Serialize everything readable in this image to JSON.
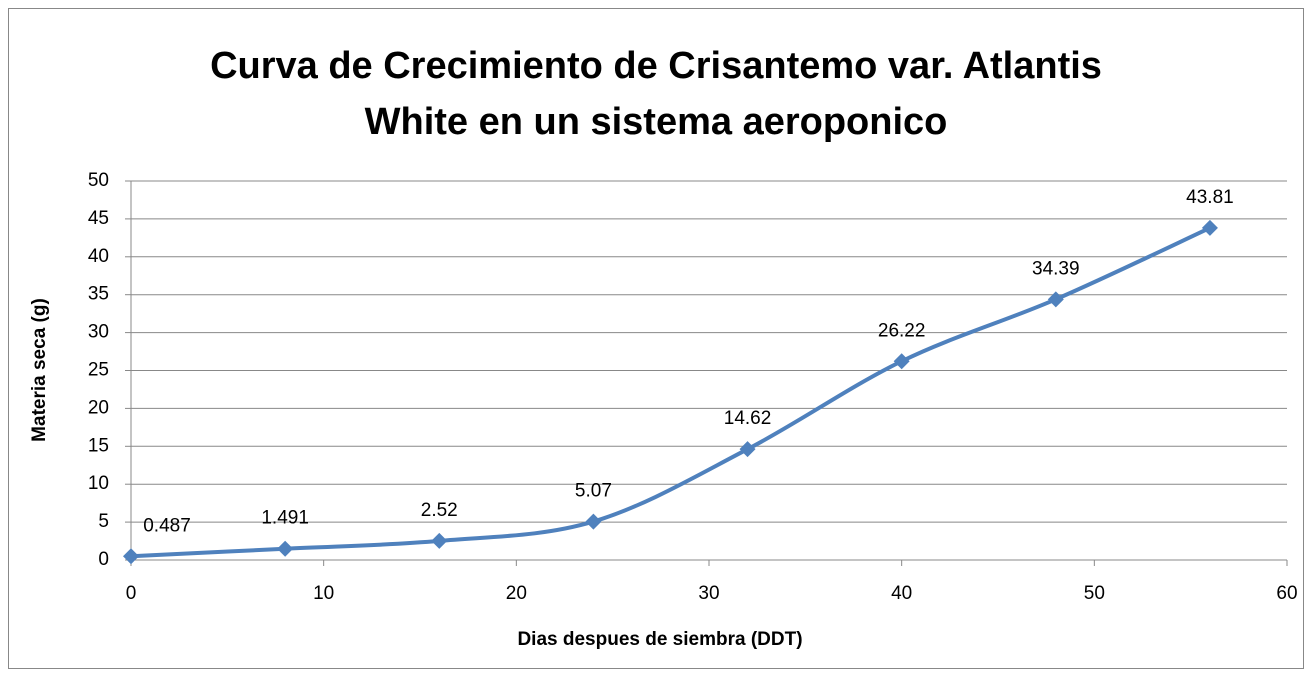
{
  "chart_data": {
    "type": "line",
    "title": "Curva de Crecimiento de Crisantemo var. Atlantis White en un sistema aeroponico",
    "x_label": "Dias despues de siembra (DDT)",
    "y_label": "Materia seca (g)",
    "x": [
      0,
      8,
      16,
      24,
      32,
      40,
      48,
      56
    ],
    "series": [
      {
        "name": "Materia seca",
        "color": "#4f81bd",
        "values": [
          0.487,
          1.491,
          2.52,
          5.07,
          14.62,
          26.22,
          34.39,
          43.81
        ]
      }
    ],
    "xlim": [
      0,
      60
    ],
    "xticks": [
      0,
      10,
      20,
      30,
      40,
      50,
      60
    ],
    "ylim": [
      0,
      50
    ],
    "yticks": [
      0,
      5,
      10,
      15,
      20,
      25,
      30,
      35,
      40,
      45,
      50
    ],
    "grid": true
  }
}
